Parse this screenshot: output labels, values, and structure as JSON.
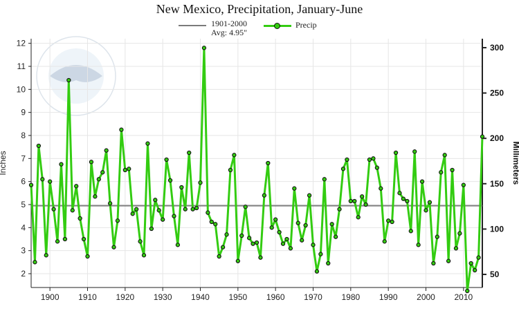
{
  "chart_data": {
    "type": "line",
    "title": "New Mexico, Precipitation, January-June",
    "ylabel": "Inches",
    "y2label": "Millimeters",
    "xlabel": "",
    "xlim": [
      1895,
      2015
    ],
    "ylim": [
      1.4,
      12.2
    ],
    "xticks": [
      "1900",
      "1910",
      "1920",
      "1930",
      "1940",
      "1950",
      "1960",
      "1970",
      "1980",
      "1990",
      "2000",
      "2010"
    ],
    "yticks": [
      "2",
      "3",
      "4",
      "5",
      "6",
      "7",
      "8",
      "9",
      "10",
      "11",
      "12"
    ],
    "y2ticks": [
      "50",
      "100",
      "150",
      "200",
      "250",
      "300"
    ],
    "grid": true,
    "legend_position": "top-center",
    "colors": {
      "series": "#33cc11",
      "reference": "#7a7a7a",
      "marker_edge": "#111111",
      "grid": "#e6e6e6"
    },
    "reference": {
      "name": "1901-2000",
      "label": "Avg: 4.95\"",
      "value": 4.95
    },
    "series": [
      {
        "name": "Precip",
        "x": [
          1895,
          1896,
          1897,
          1898,
          1899,
          1900,
          1901,
          1902,
          1903,
          1904,
          1905,
          1906,
          1907,
          1908,
          1909,
          1910,
          1911,
          1912,
          1913,
          1914,
          1915,
          1916,
          1917,
          1918,
          1919,
          1920,
          1921,
          1922,
          1923,
          1924,
          1925,
          1926,
          1927,
          1928,
          1929,
          1930,
          1931,
          1932,
          1933,
          1934,
          1935,
          1936,
          1937,
          1938,
          1939,
          1940,
          1941,
          1942,
          1943,
          1944,
          1945,
          1946,
          1947,
          1948,
          1949,
          1950,
          1951,
          1952,
          1953,
          1954,
          1955,
          1956,
          1957,
          1958,
          1959,
          1960,
          1961,
          1962,
          1963,
          1964,
          1965,
          1966,
          1967,
          1968,
          1969,
          1970,
          1971,
          1972,
          1973,
          1974,
          1975,
          1976,
          1977,
          1978,
          1979,
          1980,
          1981,
          1982,
          1983,
          1984,
          1985,
          1986,
          1987,
          1988,
          1989,
          1990,
          1991,
          1992,
          1993,
          1994,
          1995,
          1996,
          1997,
          1998,
          1999,
          2000,
          2001,
          2002,
          2003,
          2004,
          2005,
          2006,
          2007,
          2008,
          2009,
          2010,
          2011,
          2012,
          2013,
          2014,
          2015
        ],
        "values": [
          5.85,
          2.5,
          7.55,
          6.1,
          2.8,
          6.0,
          4.8,
          3.4,
          6.75,
          3.5,
          10.4,
          4.75,
          5.8,
          4.4,
          3.5,
          2.75,
          6.85,
          5.35,
          6.1,
          6.4,
          7.35,
          5.05,
          3.15,
          4.3,
          8.25,
          6.5,
          6.55,
          4.6,
          4.8,
          3.4,
          2.8,
          7.65,
          3.95,
          5.2,
          4.75,
          4.35,
          6.95,
          6.05,
          4.5,
          3.25,
          5.75,
          4.8,
          7.25,
          4.8,
          4.85,
          5.95,
          11.8,
          4.65,
          4.25,
          4.15,
          2.75,
          3.15,
          3.7,
          6.5,
          7.15,
          2.55,
          3.65,
          4.9,
          3.55,
          3.3,
          3.35,
          2.7,
          5.4,
          6.8,
          4.0,
          4.35,
          3.8,
          3.3,
          3.5,
          3.1,
          5.7,
          4.2,
          3.45,
          4.1,
          5.4,
          3.25,
          2.1,
          2.85,
          6.1,
          2.45,
          4.15,
          3.6,
          4.8,
          6.55,
          6.95,
          5.15,
          5.15,
          4.45,
          5.35,
          5.0,
          6.95,
          7.0,
          6.6,
          5.7,
          3.4,
          4.3,
          4.25,
          7.25,
          5.5,
          5.25,
          5.15,
          3.85,
          7.3,
          3.25,
          6.0,
          4.75,
          5.1,
          2.45,
          3.6,
          6.4,
          7.15,
          2.55,
          6.5,
          3.1,
          3.75,
          5.85,
          1.25,
          2.45,
          2.15,
          2.7,
          7.95
        ]
      }
    ]
  }
}
